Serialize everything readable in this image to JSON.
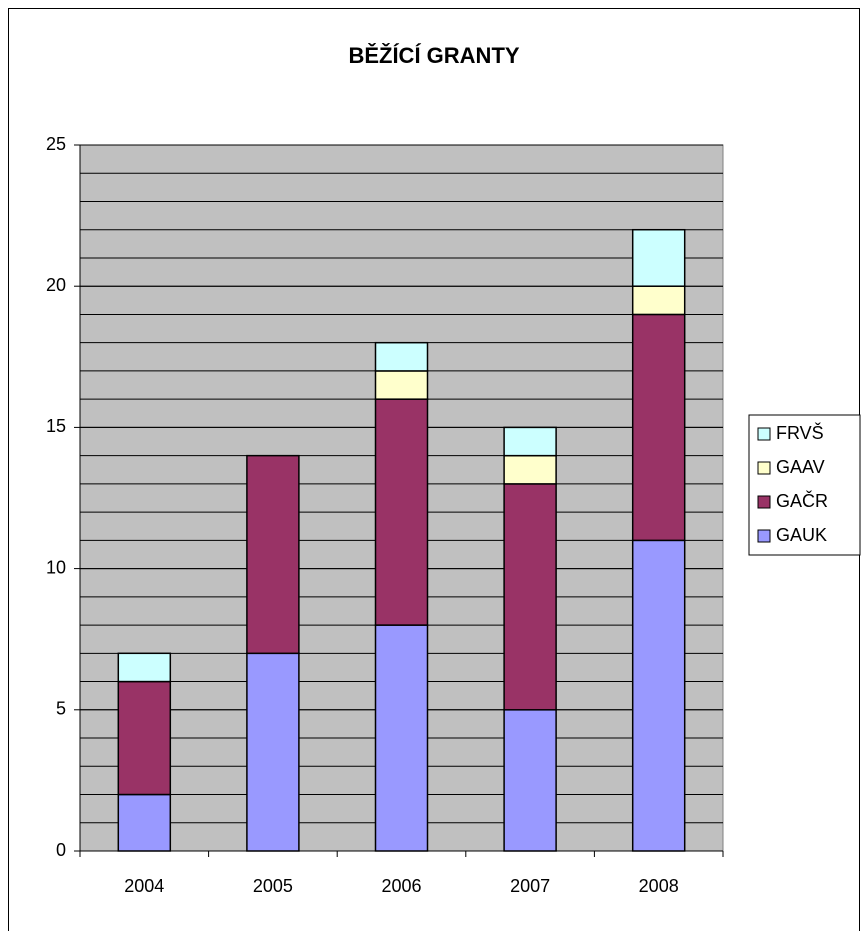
{
  "chart_data": {
    "type": "stacked_bar",
    "title": "BĚŽÍCÍ GRANTY",
    "categories": [
      "2004",
      "2005",
      "2006",
      "2007",
      "2008"
    ],
    "series": [
      {
        "name": "GAUK",
        "color": "#9999ff",
        "values": [
          2,
          7,
          8,
          5,
          11
        ]
      },
      {
        "name": "GAČR",
        "color": "#993366",
        "values": [
          4,
          7,
          8,
          8,
          8
        ]
      },
      {
        "name": "GAAV",
        "color": "#ffffcc",
        "values": [
          0,
          0,
          1,
          1,
          1
        ]
      },
      {
        "name": "FRVŠ",
        "color": "#ccffff",
        "values": [
          1,
          0,
          1,
          1,
          2
        ]
      }
    ],
    "ylim": [
      0,
      25
    ],
    "yticks": [
      0,
      5,
      10,
      15,
      20,
      25
    ],
    "grid": true,
    "minor_grid_step": 1,
    "legend": "right"
  }
}
